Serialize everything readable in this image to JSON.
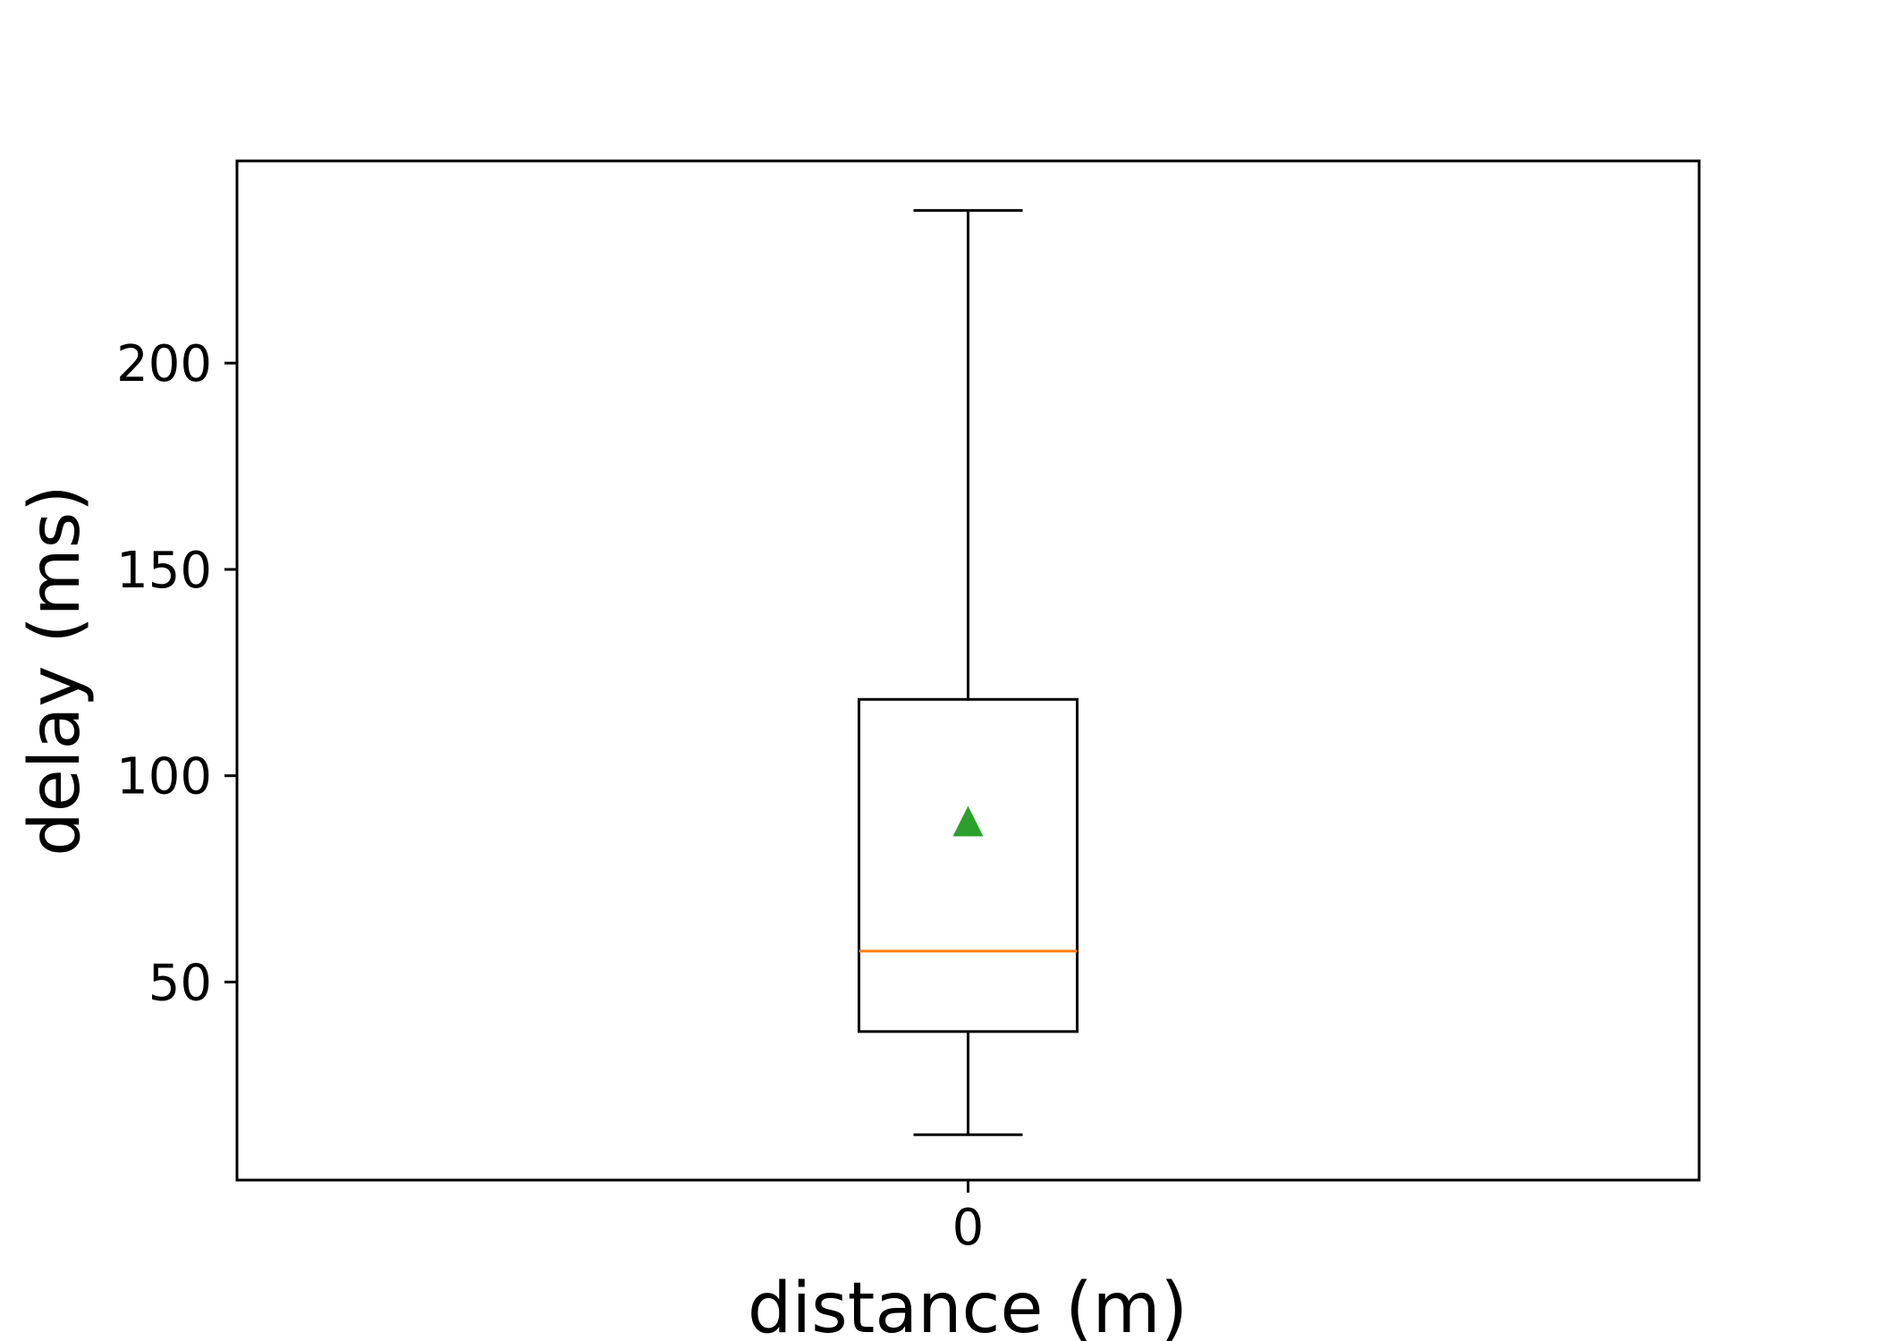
{
  "chart_data": {
    "type": "box",
    "title": "",
    "xlabel": "distance (m)",
    "ylabel": "delay (ms)",
    "categories": [
      "0"
    ],
    "ylim": [
      2,
      249
    ],
    "yticks": [
      50,
      100,
      150,
      200
    ],
    "grid": false,
    "boxes": [
      {
        "category": "0",
        "whisker_low": 13,
        "q1": 38,
        "median": 57.5,
        "q3": 118.5,
        "whisker_high": 237,
        "mean": 89
      }
    ],
    "colors": {
      "box": "#000000",
      "median": "#ff7f0e",
      "mean": "#2ca02c"
    }
  }
}
